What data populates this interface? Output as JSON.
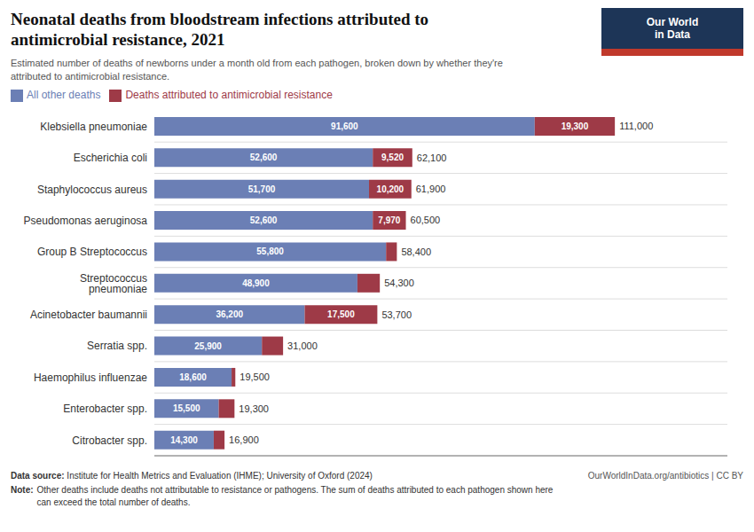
{
  "chart_data": {
    "type": "bar",
    "orientation": "horizontal",
    "stacked": true,
    "data_labels": true,
    "grid": true,
    "legend": "upper left",
    "tick_labels": "y",
    "title": "Neonatal deaths from bloodstream infections attributed to\nantimicrobial resistance, 2021",
    "subtitle": "Estimated number of deaths of newborns under a month old from each pathogen, broken down by whether they're\nattributed to antimicrobial resistance.",
    "categories": [
      "Klebsiella pneumoniae",
      "Escherichia coli",
      "Staphylococcus aureus",
      "Pseudomonas aeruginosa",
      "Group B Streptococcus",
      "Streptococcus pneumoniae",
      "Acinetobacter baumannii",
      "Serratia spp.",
      "Haemophilus influenzae",
      "Enterobacter spp.",
      "Citrobacter spp."
    ],
    "series": [
      {
        "name": "All other deaths",
        "color": "#6b7fb5",
        "values": [
          91600,
          52600,
          51700,
          52600,
          55800,
          48900,
          36200,
          25900,
          18600,
          15500,
          14300
        ],
        "value_labels": [
          "91,600",
          "52,600",
          "51,700",
          "52,600",
          "55,800",
          "48,900",
          "36,200",
          "25,900",
          "18,600",
          "15,500",
          "14,300"
        ]
      },
      {
        "name": "Deaths attributed to antimicrobial resistance",
        "color": "#9e3a47",
        "values": [
          19300,
          9520,
          10200,
          7970,
          2600,
          5400,
          17500,
          5100,
          900,
          3800,
          2600
        ],
        "value_labels": [
          "19,300",
          "9,520",
          "10,200",
          "7,970",
          null,
          null,
          "17,500",
          null,
          null,
          null,
          null
        ]
      }
    ],
    "totals": [
      111000,
      62100,
      61900,
      60500,
      58400,
      54300,
      53700,
      31000,
      19500,
      19300,
      16900
    ],
    "xlim": [
      0,
      138000
    ],
    "source_label": "Data source:",
    "source": "Institute for Health Metrics and Evaluation (IHME); University of Oxford (2024)",
    "source_right": "OurWorldInData.org/antibiotics | CC BY",
    "note_label": "Note:",
    "note": "Other deaths include deaths not attributable to resistance or pathogens. The sum of deaths attributed to each pathogen shown here\ncan exceed the total number of deaths.",
    "logo": [
      "Our World",
      "in Data"
    ],
    "logo_color": "#1d3557",
    "logo_stripe_color": "#c0392b"
  }
}
